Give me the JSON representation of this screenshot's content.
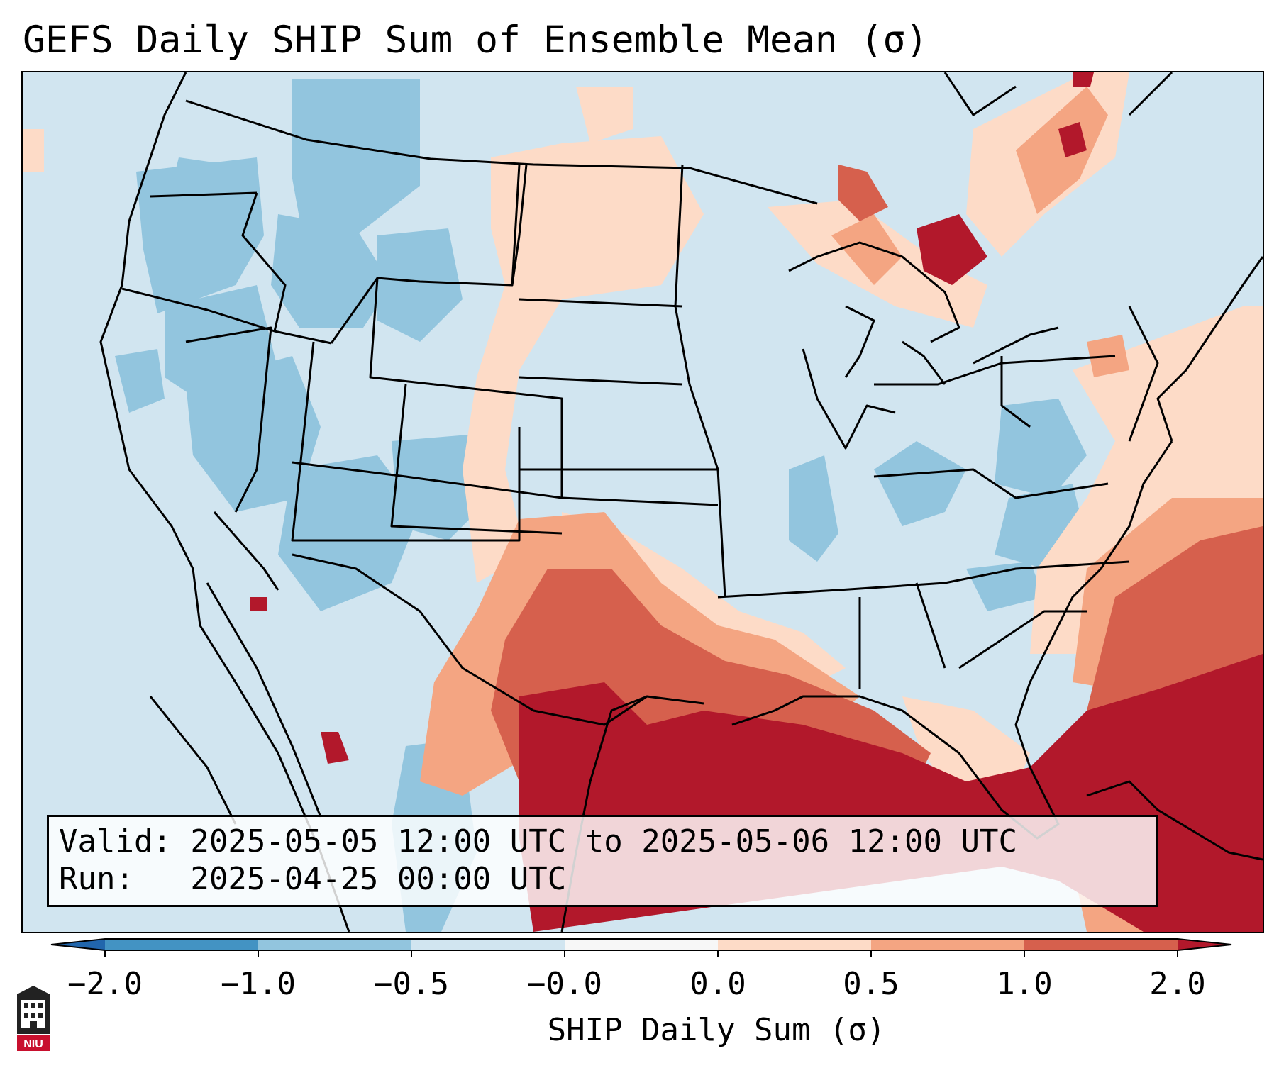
{
  "title": "GEFS Daily SHIP Sum of Ensemble Mean (σ)",
  "info": {
    "valid_line": "Valid: 2025-05-05 12:00 UTC to 2025-05-06 12:00 UTC",
    "run_line": "Run:   2025-04-25 00:00 UTC"
  },
  "colorbar": {
    "label": "SHIP Daily Sum (σ)",
    "ticks": [
      "−2.0",
      "−1.0",
      "−0.5",
      "−0.0",
      "0.0",
      "0.5",
      "1.0",
      "2.0"
    ],
    "colors": [
      "#2166ac",
      "#4393c3",
      "#92c5de",
      "#d1e5f0",
      "#f7f7f7",
      "#fddbc7",
      "#f4a582",
      "#d6604d",
      "#b2182b"
    ]
  },
  "logo": {
    "text": "NIU",
    "icon": "university-tower-logo"
  },
  "map": {
    "region": "Continental United States",
    "background_color": "#d1e5f0",
    "ocean_land_boundary_color": "#000000"
  }
}
